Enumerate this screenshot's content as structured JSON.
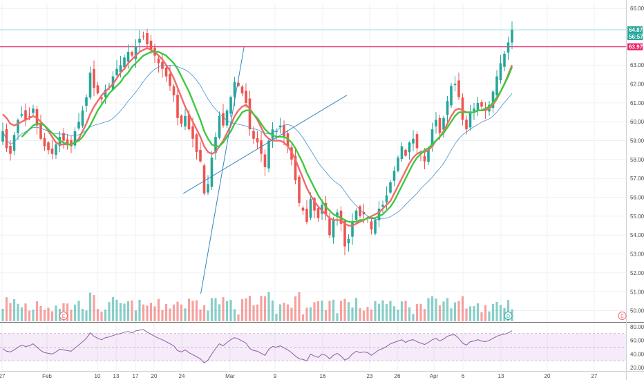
{
  "chart_data": {
    "type": "candlestick",
    "timeframe": "daily",
    "price_axis": {
      "ylim": [
        49.4,
        66.3
      ],
      "tick_labels": [
        "66.00",
        "63.00",
        "62.00",
        "61.00",
        "60.00",
        "59.00",
        "58.00",
        "57.00",
        "56.00",
        "55.00",
        "54.00",
        "53.00",
        "52.00",
        "51.00",
        "50.00"
      ],
      "tick_values": [
        66,
        63,
        62,
        61,
        60,
        59,
        58,
        57,
        56,
        55,
        54,
        53,
        52,
        51,
        50
      ]
    },
    "time_axis": {
      "labels": [
        "27",
        "Feb",
        "10",
        "13",
        "17",
        "20",
        "24",
        "Mar",
        "9",
        "16",
        "23",
        "26",
        "Apr",
        "6",
        "13",
        "20",
        "27"
      ]
    },
    "price_tags": [
      {
        "label": "64.87",
        "value": 64.87,
        "color": "#26a69a"
      },
      {
        "label": "56:57",
        "value": 64.45,
        "color": "#26a69a",
        "kind": "countdown"
      },
      {
        "label": "63.97",
        "value": 63.97,
        "color": "#e91e63"
      }
    ],
    "horizontal_lines": [
      {
        "value": 64.87,
        "color": "#8fd3e0"
      },
      {
        "value": 63.97,
        "color": "#e91e63"
      }
    ],
    "trendlines": [
      {
        "from": [
          52.1,
          50.9
        ],
        "to": [
          63.5,
          63.97
        ],
        "color": "#2e86c1"
      },
      {
        "from": [
          47.5,
          56.2
        ],
        "to": [
          90.5,
          61.4
        ],
        "color": "#2e86c1"
      }
    ],
    "closes": [
      59.5,
      58.6,
      58.3,
      59.3,
      60.1,
      60.4,
      60.1,
      60.3,
      60.7,
      59.8,
      59.1,
      58.7,
      58.5,
      58.3,
      58.8,
      59.2,
      59.0,
      58.8,
      58.7,
      59.5,
      60.0,
      60.6,
      61.3,
      62.6,
      61.8,
      61.5,
      61.2,
      61.7,
      61.9,
      62.4,
      62.8,
      63.0,
      63.4,
      63.7,
      63.5,
      64.0,
      64.4,
      64.5,
      64.1,
      63.8,
      63.5,
      63.1,
      62.8,
      62.4,
      61.9,
      61.4,
      60.2,
      59.9,
      60.3,
      59.6,
      59.1,
      58.4,
      57.9,
      56.2,
      56.7,
      58.1,
      59.2,
      60.3,
      59.8,
      60.6,
      61.3,
      62.1,
      61.9,
      61.5,
      61.0,
      59.6,
      59.1,
      58.9,
      58.3,
      57.6,
      59.0,
      59.6,
      59.5,
      59.8,
      59.2,
      58.7,
      58.0,
      56.9,
      55.7,
      55.3,
      54.7,
      55.9,
      55.3,
      54.9,
      55.6,
      55.1,
      54.0,
      54.8,
      55.2,
      54.6,
      53.4,
      53.8,
      54.7,
      55.3,
      55.0,
      55.1,
      54.9,
      54.3,
      54.8,
      55.4,
      55.6,
      56.1,
      56.8,
      57.4,
      58.1,
      58.7,
      58.2,
      58.9,
      59.1,
      58.6,
      58.3,
      57.9,
      58.5,
      59.6,
      60.1,
      59.4,
      60.2,
      61.1,
      61.9,
      62.0,
      61.3,
      60.1,
      59.6,
      60.5,
      60.7,
      61.0,
      60.8,
      60.6,
      60.9,
      61.6,
      62.4,
      63.1,
      63.6,
      64.2,
      64.87
    ],
    "moving_averages": [
      {
        "name": "",
        "color": "#f06a6a",
        "values": [
          60.4,
          60.2,
          59.9,
          59.8,
          59.9,
          60.0,
          60.1,
          60.2,
          60.3,
          60.2,
          60.0,
          59.8,
          59.5,
          59.2,
          58.9,
          58.8,
          58.8,
          58.8,
          58.8,
          58.9,
          59.1,
          59.5,
          59.9,
          60.4,
          60.8,
          61.1,
          61.4,
          61.6,
          61.8,
          62.0,
          62.3,
          62.6,
          62.8,
          63.1,
          63.3,
          63.5,
          63.7,
          63.8,
          63.9,
          63.8,
          63.7,
          63.5,
          63.3,
          63.0,
          62.7,
          62.3,
          61.8,
          61.3,
          60.8,
          60.4,
          60.0,
          59.6,
          59.2,
          58.7,
          58.4,
          58.3,
          58.4,
          58.7,
          59.0,
          59.4,
          59.8,
          60.3,
          60.6,
          60.8,
          60.9,
          60.7,
          60.4,
          60.1,
          59.7,
          59.3,
          59.1,
          59.0,
          59.0,
          59.0,
          58.9,
          58.7,
          58.4,
          58.0,
          57.5,
          57.0,
          56.5,
          56.1,
          55.8,
          55.5,
          55.3,
          55.1,
          54.9,
          54.8,
          54.8,
          54.8,
          54.6,
          54.5,
          54.5,
          54.6,
          54.7,
          54.8,
          54.9,
          55.0,
          55.1,
          55.2,
          55.4,
          55.6,
          55.8,
          56.2,
          56.6,
          57.0,
          57.4,
          57.8,
          58.1,
          58.3,
          58.4,
          58.4,
          58.5,
          58.7,
          59.0,
          59.2,
          59.5,
          59.9,
          60.3,
          60.6,
          60.7,
          60.6,
          60.5,
          60.5,
          60.5,
          60.6,
          60.6,
          60.6,
          60.7,
          60.9,
          61.2,
          61.6,
          62.0,
          62.5,
          63.0
        ]
      },
      {
        "name": "",
        "color": "#3ec93e",
        "values": [
          null,
          null,
          null,
          null,
          null,
          59.2,
          59.4,
          59.6,
          59.8,
          59.9,
          59.9,
          59.8,
          59.6,
          59.4,
          59.2,
          59.0,
          58.9,
          58.8,
          58.8,
          58.9,
          59.0,
          59.2,
          59.5,
          59.8,
          60.2,
          60.6,
          60.9,
          61.2,
          61.5,
          61.7,
          61.9,
          62.1,
          62.4,
          62.6,
          62.9,
          63.1,
          63.3,
          63.5,
          63.6,
          63.7,
          63.7,
          63.7,
          63.6,
          63.5,
          63.3,
          63.1,
          62.8,
          62.4,
          62.0,
          61.6,
          61.1,
          60.6,
          60.1,
          59.5,
          59.1,
          58.8,
          58.7,
          58.7,
          58.9,
          59.2,
          59.5,
          59.9,
          60.2,
          60.5,
          60.6,
          60.6,
          60.4,
          60.2,
          59.9,
          59.6,
          59.4,
          59.3,
          59.2,
          59.2,
          59.2,
          59.1,
          58.9,
          58.6,
          58.2,
          57.8,
          57.3,
          56.9,
          56.5,
          56.1,
          55.8,
          55.5,
          55.3,
          55.1,
          55.0,
          54.9,
          54.8,
          54.7,
          54.7,
          54.7,
          54.8,
          54.8,
          54.9,
          54.9,
          54.9,
          55.0,
          55.1,
          55.3,
          55.5,
          55.8,
          56.2,
          56.6,
          57.0,
          57.4,
          57.8,
          58.1,
          58.3,
          58.5,
          58.6,
          58.8,
          59.0,
          59.2,
          59.4,
          59.7,
          60.0,
          60.3,
          60.5,
          60.5,
          60.5,
          60.5,
          60.5,
          60.6,
          60.6,
          60.7,
          60.8,
          61.0,
          61.3,
          61.6,
          62.0,
          62.4,
          62.9
        ]
      }
    ],
    "events": [
      {
        "label": "E",
        "index": 16,
        "color": "#f06a6a"
      },
      {
        "label": "D",
        "index": 133,
        "color": "#26a69a"
      },
      {
        "label": "E",
        "index": 163,
        "color": "#f06a6a"
      }
    ],
    "rsi": {
      "ylim": [
        15,
        85
      ],
      "tick_labels": [
        "80.00",
        "60.00",
        "40.00",
        "20.00"
      ],
      "tick_values": [
        80,
        60,
        40,
        20
      ],
      "band": [
        30,
        70
      ],
      "values": [
        48,
        44,
        43,
        46,
        50,
        53,
        51,
        52,
        55,
        50,
        45,
        42,
        41,
        40,
        43,
        47,
        46,
        45,
        44,
        49,
        53,
        58,
        63,
        71,
        66,
        63,
        61,
        64,
        65,
        67,
        69,
        70,
        72,
        73,
        71,
        74,
        75,
        76,
        72,
        69,
        66,
        63,
        61,
        58,
        55,
        52,
        45,
        43,
        46,
        42,
        39,
        36,
        33,
        27,
        31,
        40,
        48,
        55,
        52,
        57,
        61,
        64,
        62,
        59,
        56,
        48,
        45,
        44,
        41,
        38,
        47,
        51,
        50,
        52,
        49,
        46,
        42,
        37,
        33,
        32,
        30,
        40,
        37,
        35,
        40,
        38,
        33,
        38,
        41,
        37,
        31,
        34,
        40,
        44,
        42,
        43,
        42,
        38,
        42,
        46,
        48,
        51,
        55,
        57,
        59,
        61,
        57,
        60,
        61,
        58,
        56,
        54,
        57,
        61,
        63,
        59,
        62,
        66,
        68,
        68,
        63,
        56,
        53,
        58,
        59,
        61,
        59,
        58,
        60,
        63,
        66,
        68,
        69,
        71,
        74
      ]
    }
  }
}
